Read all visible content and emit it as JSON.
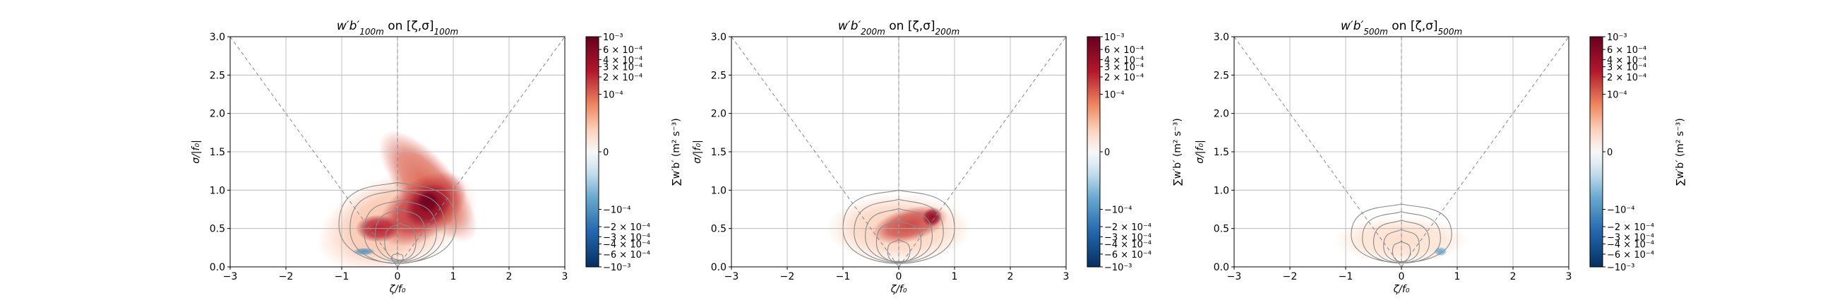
{
  "chart_data": [
    {
      "type": "heatmap",
      "title_main": "w′b′",
      "title_sub": "100m",
      "title_on": " on [ζ,σ]",
      "title_bracket_sub": "100m",
      "xlabel": "ζ/f₀",
      "ylabel": "σ/|f₀|",
      "xlim": [
        -3,
        3
      ],
      "ylim": [
        0,
        3
      ],
      "xticks": [
        "−3",
        "−2",
        "−1",
        "0",
        "1",
        "2",
        "3"
      ],
      "yticks": [
        "0.0",
        "0.5",
        "1.0",
        "1.5",
        "2.0",
        "2.5",
        "3.0"
      ],
      "grid": true,
      "reference_lines": "σ = |ζ| (dashed), ζ = 0 (dashed)",
      "colorbar": {
        "label": "∑w′b′ (m² s⁻³)",
        "scale": "symlog",
        "cmap": "RdBu_r",
        "ticks": [
          "10⁻³",
          "6 × 10⁻⁴",
          "4 × 10⁻⁴",
          "3 × 10⁻⁴",
          "2 × 10⁻⁴",
          "10⁻⁴",
          "0",
          "−10⁻⁴",
          "−2 × 10⁻⁴",
          "−3 × 10⁻⁴",
          "−4 × 10⁻⁴",
          "−6 × 10⁻⁴",
          "−10⁻³"
        ]
      },
      "blobs": [
        {
          "zeta": 0.0,
          "sigma": 0.6,
          "rx": 1.5,
          "ry": 0.6,
          "rot": -20,
          "value": 5e-05
        },
        {
          "zeta": 0.55,
          "sigma": 1.05,
          "rx": 0.5,
          "ry": 0.9,
          "rot": -40,
          "value": 0.0001
        },
        {
          "zeta": 0.45,
          "sigma": 0.75,
          "rx": 0.9,
          "ry": 0.38,
          "rot": -35,
          "value": 0.0002
        },
        {
          "zeta": -0.35,
          "sigma": 0.5,
          "rx": 0.4,
          "ry": 0.18,
          "rot": 0,
          "value": 0.00025
        },
        {
          "zeta": 0.55,
          "sigma": 0.8,
          "rx": 0.45,
          "ry": 0.25,
          "rot": -40,
          "value": 0.0005
        },
        {
          "zeta": 0.55,
          "sigma": 0.85,
          "rx": 0.2,
          "ry": 0.14,
          "rot": -40,
          "value": 0.0009
        },
        {
          "zeta": -0.6,
          "sigma": 0.2,
          "rx": 0.2,
          "ry": 0.05,
          "rot": 0,
          "value": -0.0001
        }
      ],
      "contours": [
        {
          "zeta": 0.0,
          "sigma": 0.55,
          "rx": 1.05,
          "ry": 0.55
        },
        {
          "zeta": 0.0,
          "sigma": 0.5,
          "rx": 0.85,
          "ry": 0.5
        },
        {
          "zeta": 0.05,
          "sigma": 0.45,
          "rx": 0.65,
          "ry": 0.42
        },
        {
          "zeta": 0.05,
          "sigma": 0.4,
          "rx": 0.45,
          "ry": 0.35
        },
        {
          "zeta": 0.05,
          "sigma": 0.32,
          "rx": 0.28,
          "ry": 0.25
        },
        {
          "zeta": 0.0,
          "sigma": 0.12,
          "rx": 0.1,
          "ry": 0.07
        }
      ]
    },
    {
      "type": "heatmap",
      "title_main": "w′b′",
      "title_sub": "200m",
      "title_on": " on [ζ,σ]",
      "title_bracket_sub": "200m",
      "xlabel": "ζ/f₀",
      "ylabel": "σ/|f₀|",
      "xlim": [
        -3,
        3
      ],
      "ylim": [
        0,
        3
      ],
      "xticks": [
        "−3",
        "−2",
        "−1",
        "0",
        "1",
        "2",
        "3"
      ],
      "yticks": [
        "0.0",
        "0.5",
        "1.0",
        "1.5",
        "2.0",
        "2.5",
        "3.0"
      ],
      "grid": true,
      "reference_lines": "σ = |ζ| (dashed), ζ = 0 (dashed)",
      "colorbar": {
        "label": "∑w′b′ (m² s⁻³)",
        "scale": "symlog",
        "cmap": "RdBu_r",
        "ticks": [
          "10⁻³",
          "6 × 10⁻⁴",
          "4 × 10⁻⁴",
          "3 × 10⁻⁴",
          "2 × 10⁻⁴",
          "10⁻⁴",
          "0",
          "−10⁻⁴",
          "−2 × 10⁻⁴",
          "−3 × 10⁻⁴",
          "−4 × 10⁻⁴",
          "−6 × 10⁻⁴",
          "−10⁻³"
        ]
      },
      "blobs": [
        {
          "zeta": 0.0,
          "sigma": 0.5,
          "rx": 1.3,
          "ry": 0.45,
          "rot": 0,
          "value": 4e-05
        },
        {
          "zeta": 0.2,
          "sigma": 0.55,
          "rx": 0.7,
          "ry": 0.22,
          "rot": -15,
          "value": 0.00015
        },
        {
          "zeta": 0.6,
          "sigma": 0.65,
          "rx": 0.18,
          "ry": 0.12,
          "rot": -30,
          "value": 0.0005
        }
      ],
      "contours": [
        {
          "zeta": 0.0,
          "sigma": 0.5,
          "rx": 1.0,
          "ry": 0.5
        },
        {
          "zeta": 0.0,
          "sigma": 0.45,
          "rx": 0.8,
          "ry": 0.43
        },
        {
          "zeta": 0.0,
          "sigma": 0.4,
          "rx": 0.6,
          "ry": 0.36
        },
        {
          "zeta": 0.0,
          "sigma": 0.32,
          "rx": 0.4,
          "ry": 0.28
        },
        {
          "zeta": 0.0,
          "sigma": 0.2,
          "rx": 0.2,
          "ry": 0.16
        }
      ]
    },
    {
      "type": "heatmap",
      "title_main": "w′b′",
      "title_sub": "500m",
      "title_on": " on [ζ,σ]",
      "title_bracket_sub": "500m",
      "xlabel": "ζ/f₀",
      "ylabel": "σ/|f₀|",
      "xlim": [
        -3,
        3
      ],
      "ylim": [
        0,
        3
      ],
      "xticks": [
        "−3",
        "−2",
        "−1",
        "0",
        "1",
        "2",
        "3"
      ],
      "yticks": [
        "0.0",
        "0.5",
        "1.0",
        "1.5",
        "2.0",
        "2.5",
        "3.0"
      ],
      "grid": true,
      "reference_lines": "σ = |ζ| (dashed), ζ = 0 (dashed)",
      "colorbar": {
        "label": "∑w′b′ (m² s⁻³)",
        "scale": "symlog",
        "cmap": "RdBu_r",
        "ticks": [
          "10⁻³",
          "6 × 10⁻⁴",
          "4 × 10⁻⁴",
          "3 × 10⁻⁴",
          "2 × 10⁻⁴",
          "10⁻⁴",
          "0",
          "−10⁻⁴",
          "−2 × 10⁻⁴",
          "−3 × 10⁻⁴",
          "−4 × 10⁻⁴",
          "−6 × 10⁻⁴",
          "−10⁻³"
        ]
      },
      "blobs": [
        {
          "zeta": 0.0,
          "sigma": 0.35,
          "rx": 1.2,
          "ry": 0.3,
          "rot": 0,
          "value": 3e-05
        },
        {
          "zeta": 0.7,
          "sigma": 0.2,
          "rx": 0.12,
          "ry": 0.06,
          "rot": 0,
          "value": -8e-05
        }
      ],
      "contours": [
        {
          "zeta": 0.0,
          "sigma": 0.42,
          "rx": 0.9,
          "ry": 0.4
        },
        {
          "zeta": 0.0,
          "sigma": 0.37,
          "rx": 0.7,
          "ry": 0.35
        },
        {
          "zeta": 0.0,
          "sigma": 0.32,
          "rx": 0.5,
          "ry": 0.29
        },
        {
          "zeta": 0.0,
          "sigma": 0.27,
          "rx": 0.32,
          "ry": 0.22
        },
        {
          "zeta": 0.0,
          "sigma": 0.2,
          "rx": 0.16,
          "ry": 0.14
        }
      ]
    }
  ]
}
